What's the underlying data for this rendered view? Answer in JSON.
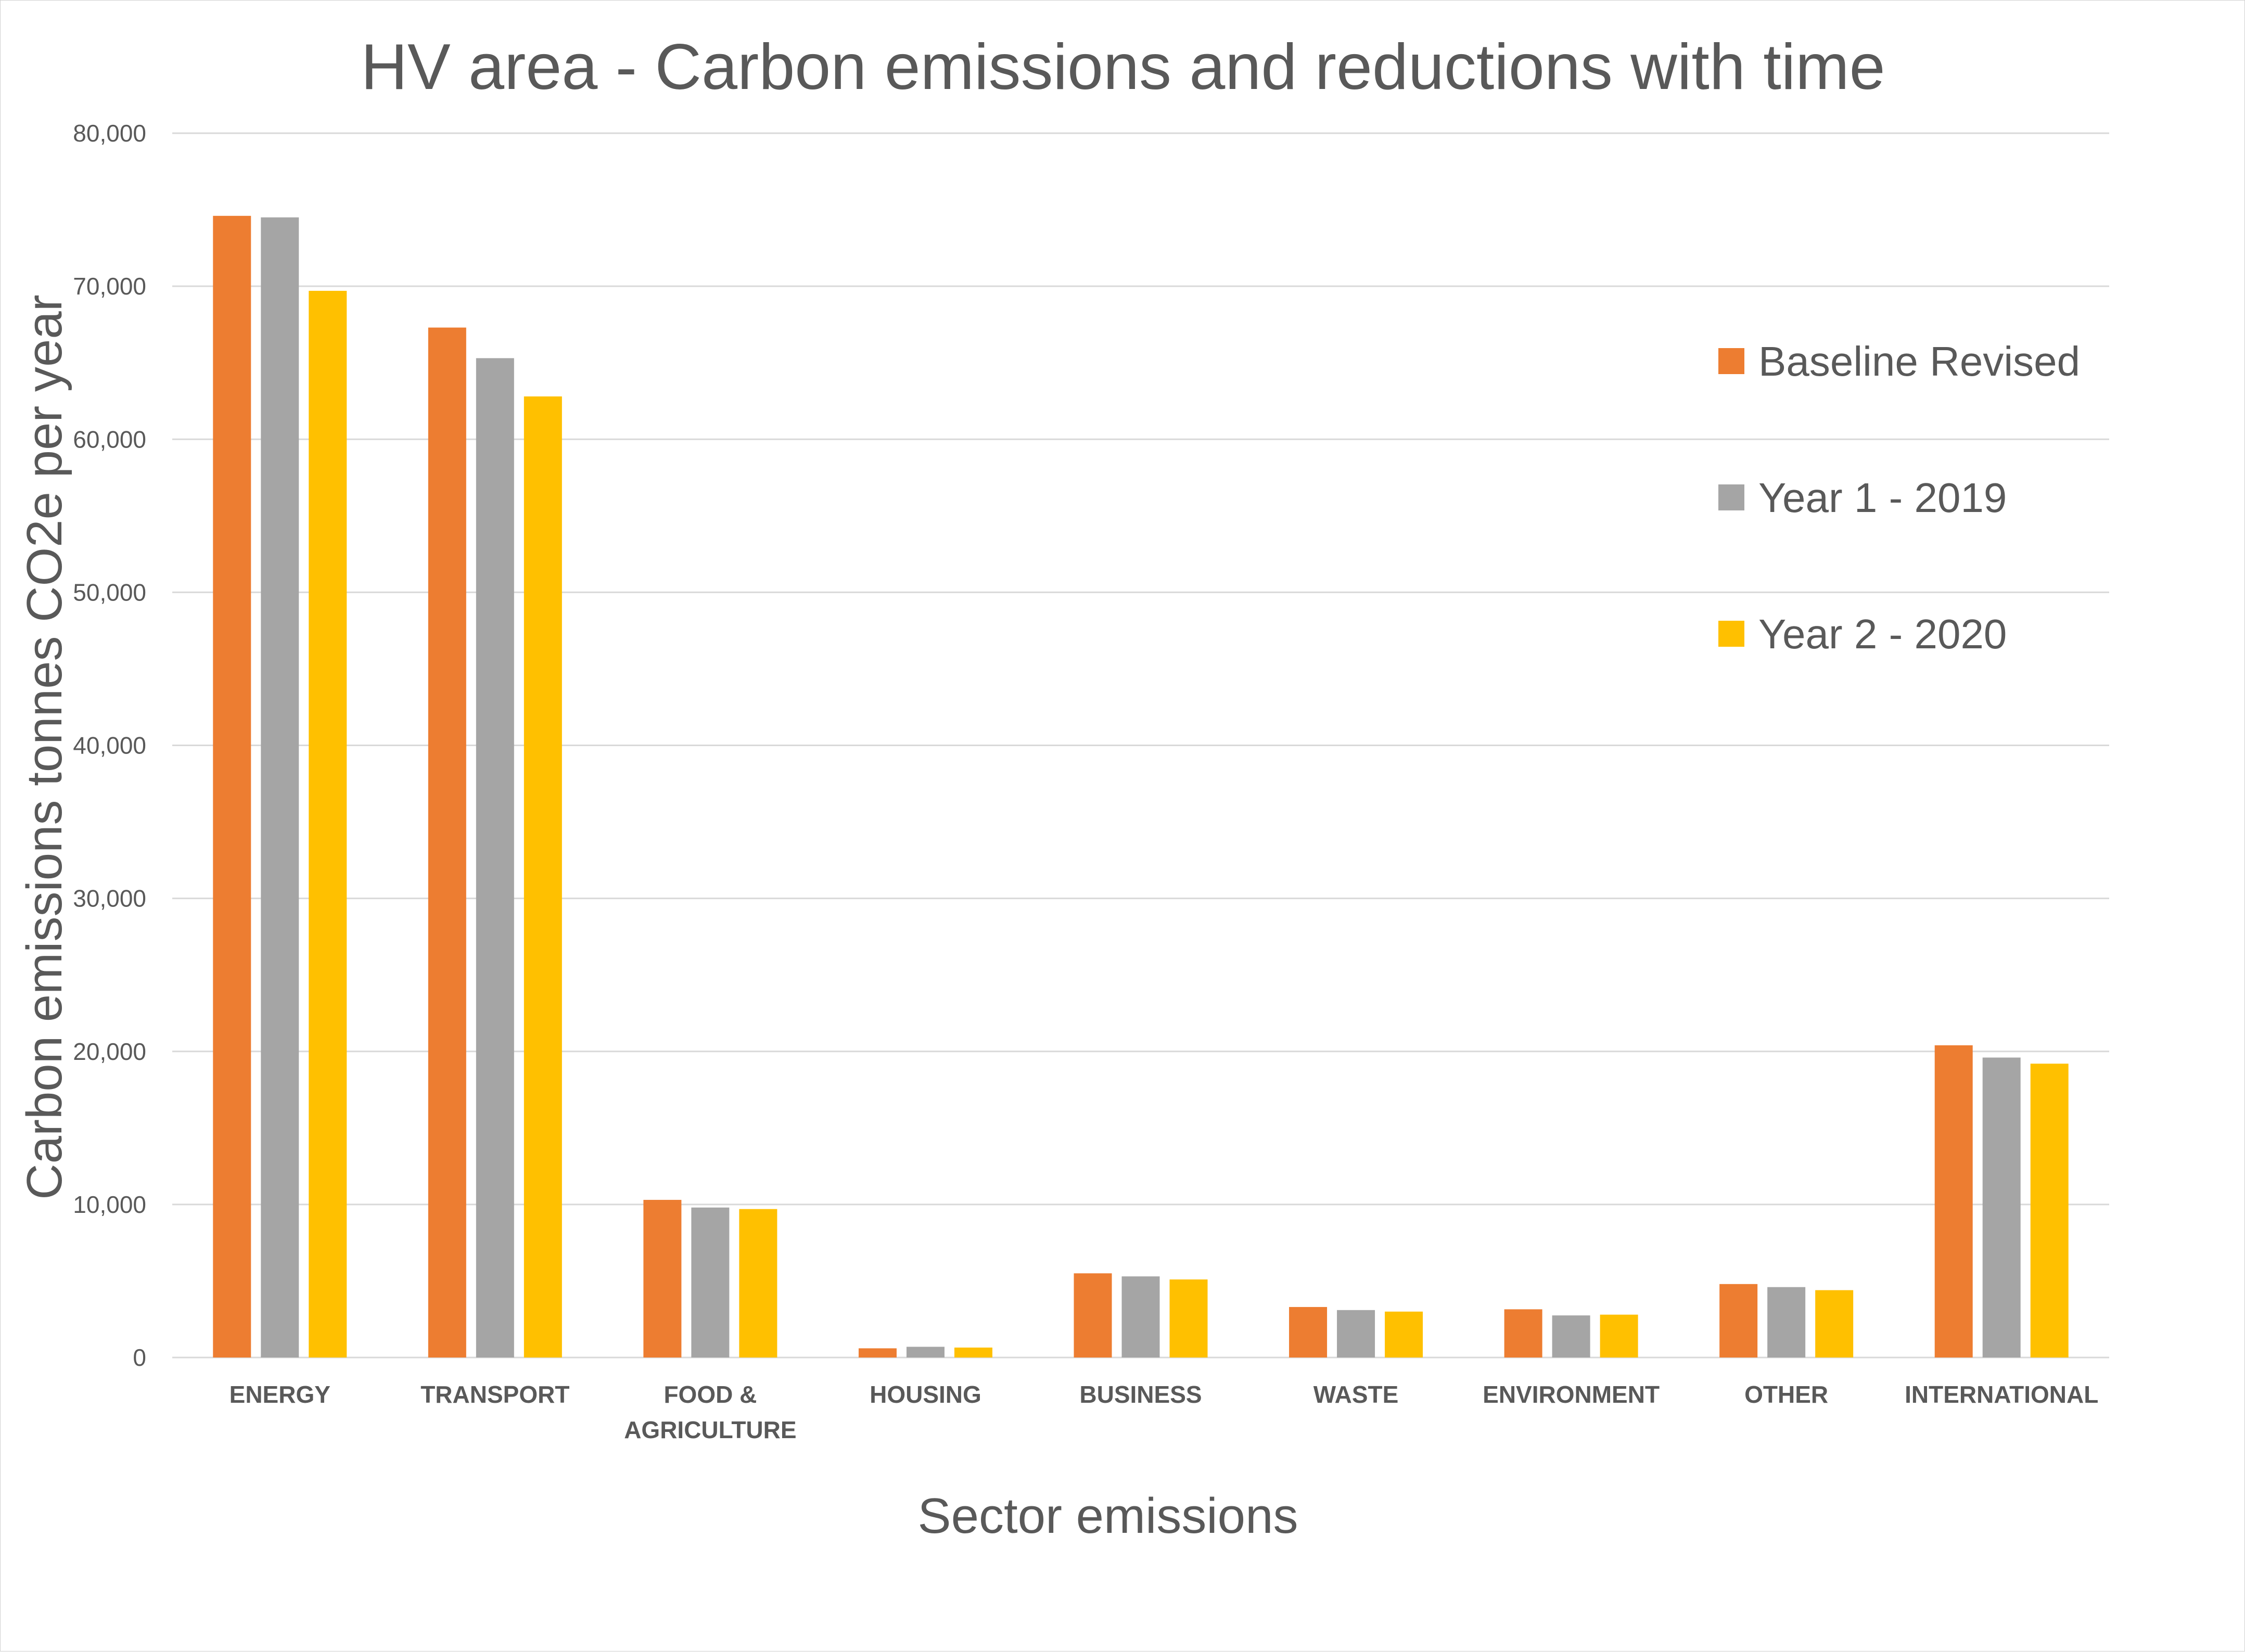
{
  "chart_data": {
    "type": "bar",
    "title": "HV area - Carbon emissions and reductions with time",
    "xlabel": "Sector emissions",
    "ylabel": "Carbon emissions tonnes CO2e per year",
    "categories": [
      [
        "ENERGY"
      ],
      [
        "TRANSPORT"
      ],
      [
        "FOOD &",
        "AGRICULTURE"
      ],
      [
        "HOUSING"
      ],
      [
        "BUSINESS"
      ],
      [
        "WASTE"
      ],
      [
        "ENVIRONMENT"
      ],
      [
        "OTHER"
      ],
      [
        "INTERNATIONAL"
      ]
    ],
    "series": [
      {
        "name": "Baseline Revised",
        "color": "#ED7D31",
        "values": [
          74600,
          67300,
          10300,
          600,
          5500,
          3300,
          3150,
          4800,
          20400
        ]
      },
      {
        "name": "Year 1 - 2019",
        "color": "#A5A5A5",
        "values": [
          74500,
          65300,
          9800,
          700,
          5300,
          3100,
          2750,
          4600,
          19600
        ]
      },
      {
        "name": "Year 2 - 2020",
        "color": "#FFC000",
        "values": [
          69700,
          62800,
          9700,
          650,
          5100,
          3000,
          2800,
          4400,
          19200
        ]
      }
    ],
    "ylim": [
      0,
      80000
    ],
    "yticks": [
      0,
      10000,
      20000,
      30000,
      40000,
      50000,
      60000,
      70000,
      80000
    ],
    "ytick_labels": [
      "0",
      "10,000",
      "20,000",
      "30,000",
      "40,000",
      "50,000",
      "60,000",
      "70,000",
      "80,000"
    ],
    "grid": true,
    "legend_position": "right"
  }
}
